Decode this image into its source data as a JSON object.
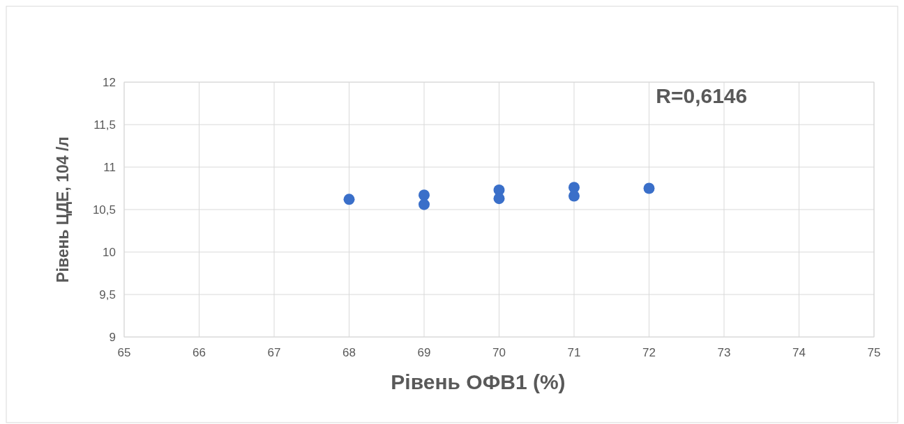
{
  "chart_data": {
    "type": "scatter",
    "xlabel": "Рівень ОФВ1  (%)",
    "ylabel": "Рівень ЦДЕ, 104 /л",
    "x": [
      68,
      69,
      69,
      70,
      70,
      71,
      71,
      72
    ],
    "values": [
      10.62,
      10.67,
      10.56,
      10.73,
      10.63,
      10.76,
      10.66,
      10.75
    ],
    "color": "#3a6fc9",
    "marker": "circle",
    "xlim": [
      65,
      75
    ],
    "xticks": [
      65,
      66,
      67,
      68,
      69,
      70,
      71,
      72,
      73,
      74,
      75
    ],
    "ylim": [
      9,
      12
    ],
    "yticks": [
      9,
      {
        "value": 9.5,
        "label": "9,5"
      },
      10,
      {
        "value": 10.5,
        "label": "10,5"
      },
      11,
      {
        "value": 11.5,
        "label": "11,5"
      },
      12
    ],
    "grid": true,
    "annotations": [
      "R=0,6146"
    ]
  }
}
